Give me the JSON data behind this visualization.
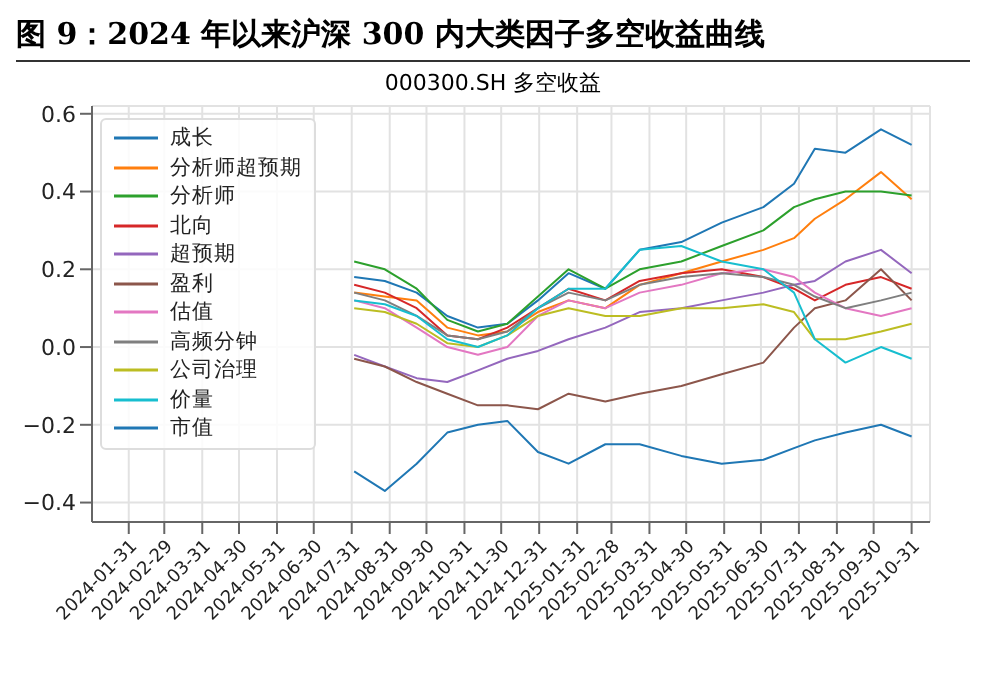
{
  "chart_data": {
    "type": "line",
    "title": "图 9：2024 年以来沪深 300 内大类因子多空收益曲线",
    "subtitle": "000300.SH  多空收益",
    "x": [
      "2024-08-02",
      "2024-08-27",
      "2024-09-22",
      "2024-10-17",
      "2024-11-11",
      "2024-12-05",
      "2024-12-30",
      "2025-01-24",
      "2025-02-23",
      "2025-03-23",
      "2025-04-26",
      "2025-05-29",
      "2025-07-02",
      "2025-07-27",
      "2025-08-13",
      "2025-09-07",
      "2025-10-06",
      "2025-10-31"
    ],
    "series": [
      {
        "name": "成长",
        "color": "#1f77b4",
        "values": [
          0.18,
          0.17,
          0.14,
          0.08,
          0.05,
          0.06,
          0.12,
          0.19,
          0.15,
          0.25,
          0.27,
          0.32,
          0.36,
          0.42,
          0.51,
          0.5,
          0.56,
          0.52
        ]
      },
      {
        "name": "分析师超预期",
        "color": "#ff7f0e",
        "values": [
          0.14,
          0.13,
          0.12,
          0.05,
          0.03,
          0.04,
          0.09,
          0.12,
          0.1,
          0.16,
          0.19,
          0.22,
          0.25,
          0.28,
          0.33,
          0.38,
          0.45,
          0.38
        ]
      },
      {
        "name": "分析师",
        "color": "#2ca02c",
        "values": [
          0.22,
          0.2,
          0.15,
          0.07,
          0.04,
          0.06,
          0.13,
          0.2,
          0.15,
          0.2,
          0.22,
          0.26,
          0.3,
          0.36,
          0.38,
          0.4,
          0.4,
          0.39
        ]
      },
      {
        "name": "北向",
        "color": "#d62728",
        "values": [
          0.16,
          0.14,
          0.1,
          0.03,
          0.02,
          0.05,
          0.1,
          0.15,
          0.12,
          0.17,
          0.19,
          0.2,
          0.18,
          0.15,
          0.12,
          0.16,
          0.18,
          0.15
        ]
      },
      {
        "name": "超预期",
        "color": "#9467bd",
        "values": [
          -0.02,
          -0.05,
          -0.08,
          -0.09,
          -0.06,
          -0.03,
          -0.01,
          0.02,
          0.05,
          0.09,
          0.1,
          0.12,
          0.14,
          0.16,
          0.17,
          0.22,
          0.25,
          0.19
        ]
      },
      {
        "name": "盈利",
        "color": "#8c564b",
        "values": [
          -0.03,
          -0.05,
          -0.09,
          -0.12,
          -0.15,
          -0.15,
          -0.16,
          -0.12,
          -0.14,
          -0.12,
          -0.1,
          -0.07,
          -0.04,
          0.05,
          0.1,
          0.12,
          0.2,
          0.12
        ]
      },
      {
        "name": "估值",
        "color": "#e377c2",
        "values": [
          0.12,
          0.1,
          0.05,
          0.0,
          -0.02,
          0.0,
          0.08,
          0.12,
          0.1,
          0.14,
          0.16,
          0.19,
          0.2,
          0.18,
          0.14,
          0.1,
          0.08,
          0.1
        ]
      },
      {
        "name": "高频分钟",
        "color": "#7f7f7f",
        "values": [
          0.14,
          0.12,
          0.08,
          0.03,
          0.02,
          0.04,
          0.1,
          0.14,
          0.12,
          0.16,
          0.18,
          0.19,
          0.18,
          0.16,
          0.13,
          0.1,
          0.12,
          0.14
        ]
      },
      {
        "name": "公司治理",
        "color": "#bcbd22",
        "values": [
          0.1,
          0.09,
          0.06,
          0.01,
          0.0,
          0.03,
          0.08,
          0.1,
          0.08,
          0.08,
          0.1,
          0.1,
          0.11,
          0.09,
          0.02,
          0.02,
          0.04,
          0.06
        ]
      },
      {
        "name": "价量",
        "color": "#17becf",
        "values": [
          0.12,
          0.11,
          0.08,
          0.02,
          0.0,
          0.03,
          0.1,
          0.15,
          0.15,
          0.25,
          0.26,
          0.22,
          0.2,
          0.14,
          0.02,
          -0.04,
          0.0,
          -0.03
        ]
      },
      {
        "name": "市值",
        "color": "#1f77b4",
        "values": [
          -0.32,
          -0.37,
          -0.3,
          -0.22,
          -0.2,
          -0.19,
          -0.27,
          -0.3,
          -0.25,
          -0.25,
          -0.28,
          -0.3,
          -0.29,
          -0.26,
          -0.24,
          -0.22,
          -0.2,
          -0.23
        ]
      }
    ],
    "xlim": [
      "2024-01-01",
      "2025-11-15"
    ],
    "xticks": [
      "2024-01-31",
      "2024-02-29",
      "2024-03-31",
      "2024-04-30",
      "2024-05-31",
      "2024-06-30",
      "2024-07-31",
      "2024-08-31",
      "2024-09-30",
      "2024-10-31",
      "2024-11-30",
      "2024-12-31",
      "2025-01-31",
      "2025-02-28",
      "2025-03-31",
      "2025-04-30",
      "2025-05-31",
      "2025-06-30",
      "2025-07-31",
      "2025-08-31",
      "2025-09-30",
      "2025-10-31"
    ],
    "ylim": [
      -0.45,
      0.62
    ],
    "yticks": [
      {
        "value": -0.4,
        "label": "−0.4"
      },
      {
        "value": -0.2,
        "label": "−0.2"
      },
      {
        "value": 0,
        "label": "0.0"
      },
      0.2,
      0.4,
      0.6
    ],
    "grid": true,
    "legend": "top left",
    "marker": "none",
    "line_style": "solid"
  }
}
